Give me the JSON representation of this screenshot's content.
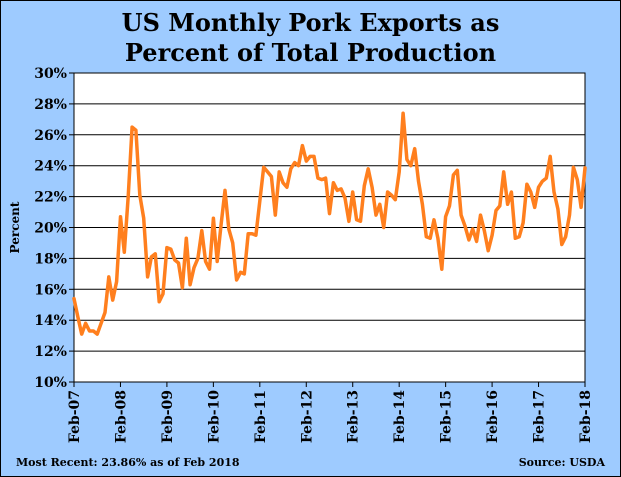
{
  "title_lines": [
    "US Monthly Pork Exports as",
    "Percent of Total Production"
  ],
  "footer": {
    "most_recent": "Most Recent: 23.86% as of Feb 2018",
    "source": "Source: USDA"
  },
  "colors": {
    "background": "#9ecbff",
    "plot": "#ffffff",
    "line": "#ff7f1e",
    "grid": "#000000"
  },
  "chart_data": {
    "type": "line",
    "title": "US Monthly Pork Exports as Percent of Total Production",
    "ylabel": "Percent",
    "xlabel": "",
    "ylim": [
      10,
      30
    ],
    "yticks": [
      10,
      12,
      14,
      16,
      18,
      20,
      22,
      24,
      26,
      28,
      30
    ],
    "ytick_labels": [
      "10%",
      "12%",
      "14%",
      "16%",
      "18%",
      "20%",
      "22%",
      "24%",
      "26%",
      "28%",
      "30%"
    ],
    "xticks": [
      "Feb-07",
      "Feb-08",
      "Feb-09",
      "Feb-10",
      "Feb-11",
      "Feb-12",
      "Feb-13",
      "Feb-14",
      "Feb-15",
      "Feb-16",
      "Feb-17",
      "Feb-18"
    ],
    "horizontal_grid": true,
    "vertical_grid": false,
    "series": [
      {
        "start": "Feb-07",
        "frequency": "monthly",
        "values": [
          15.4,
          14.2,
          13.1,
          13.8,
          13.3,
          13.3,
          13.1,
          13.8,
          14.5,
          16.8,
          15.3,
          16.5,
          20.7,
          18.4,
          22.0,
          26.5,
          26.3,
          22.1,
          20.6,
          16.8,
          18.1,
          18.3,
          15.2,
          15.7,
          18.7,
          18.6,
          17.9,
          17.7,
          16.1,
          19.3,
          16.3,
          17.4,
          18.0,
          19.8,
          17.8,
          17.3,
          20.6,
          17.8,
          20.2,
          22.4,
          19.9,
          19.0,
          16.6,
          17.1,
          17.0,
          19.6,
          19.6,
          19.5,
          21.7,
          23.9,
          23.6,
          23.3,
          20.8,
          23.6,
          22.9,
          22.6,
          23.8,
          24.2,
          24.0,
          25.3,
          24.3,
          24.6,
          24.6,
          23.2,
          23.1,
          23.2,
          20.9,
          22.9,
          22.4,
          22.5,
          21.9,
          20.4,
          22.3,
          20.5,
          20.4,
          22.7,
          23.8,
          22.6,
          20.8,
          21.5,
          20.0,
          22.3,
          22.1,
          21.8,
          23.6,
          27.4,
          24.4,
          24.0,
          25.1,
          23.0,
          21.5,
          19.4,
          19.3,
          20.5,
          19.3,
          17.3,
          20.7,
          21.4,
          23.4,
          23.7,
          20.8,
          20.1,
          19.2,
          19.9,
          19.1,
          20.8,
          19.8,
          18.5,
          19.5,
          21.1,
          21.4,
          23.6,
          21.5,
          22.3,
          19.3,
          19.4,
          20.3,
          22.8,
          22.3,
          21.3,
          22.6,
          23.0,
          23.2,
          24.6,
          22.3,
          21.2,
          18.9,
          19.4,
          20.8,
          23.9,
          23.1,
          21.3,
          23.86
        ]
      }
    ]
  }
}
